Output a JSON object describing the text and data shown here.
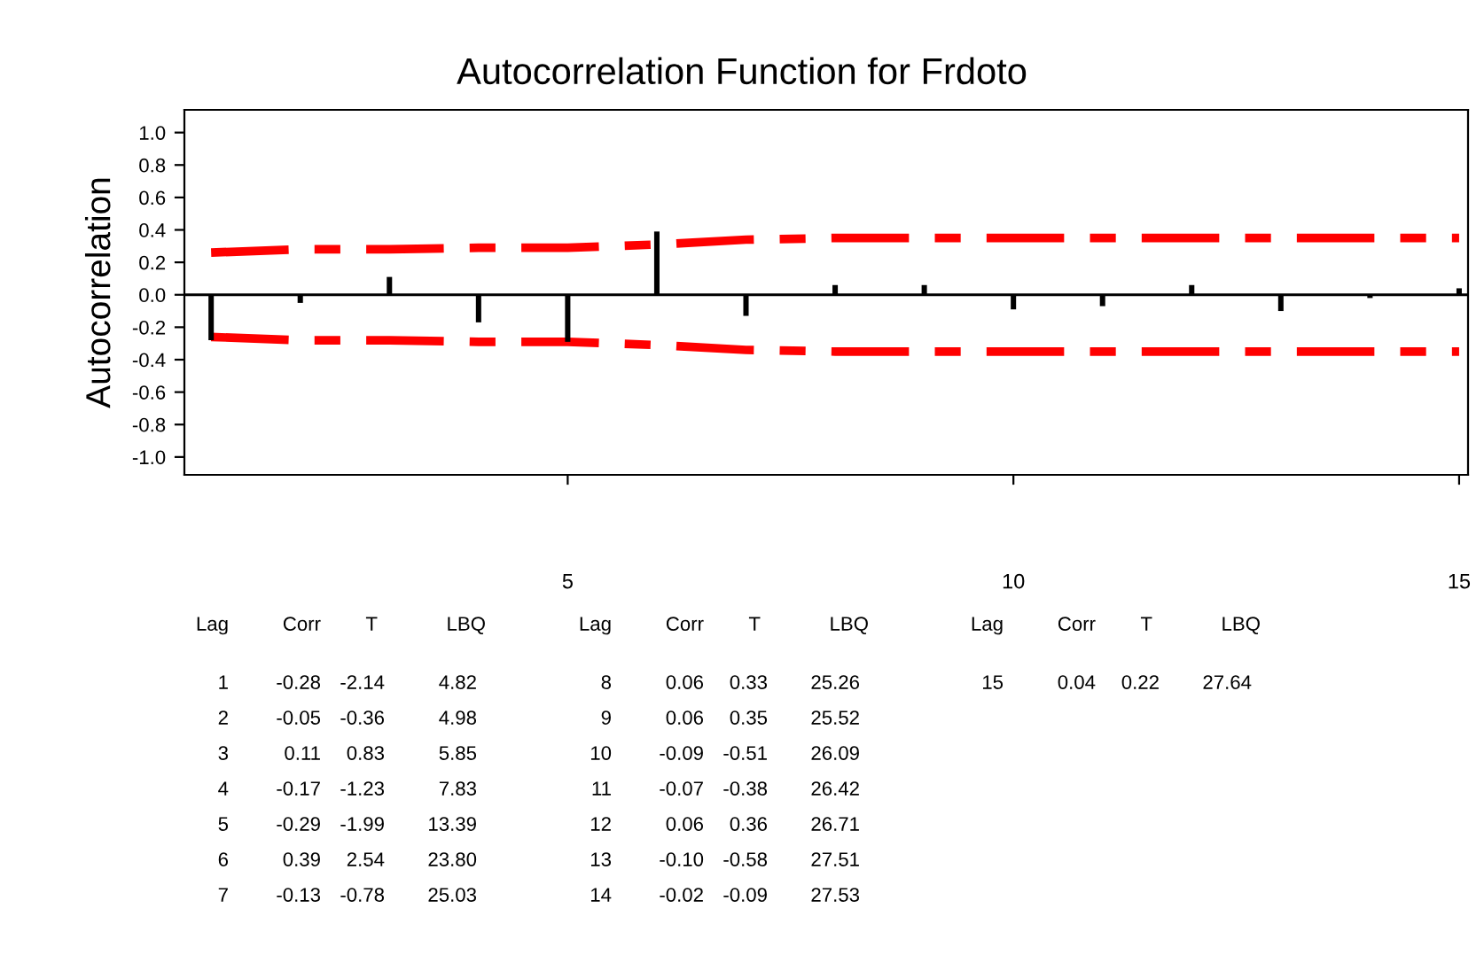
{
  "chart_data": {
    "type": "bar",
    "title": "Autocorrelation Function for Frdoto",
    "ylabel": "Autocorrelation",
    "x": [
      1,
      2,
      3,
      4,
      5,
      6,
      7,
      8,
      9,
      10,
      11,
      12,
      13,
      14,
      15
    ],
    "series": [
      {
        "color": "#000000",
        "values": [
          -0.28,
          -0.05,
          0.11,
          -0.17,
          -0.29,
          0.39,
          -0.13,
          0.06,
          0.06,
          -0.09,
          -0.07,
          0.06,
          -0.1,
          -0.02,
          0.04
        ]
      },
      {
        "type": "line",
        "color": "#ff0000",
        "line_style": "dashed",
        "values": [
          0.26,
          0.28,
          0.28,
          0.29,
          0.29,
          0.31,
          0.34,
          0.35,
          0.35,
          0.35,
          0.35,
          0.35,
          0.35,
          0.35,
          0.35
        ]
      },
      {
        "type": "line",
        "color": "#ff0000",
        "line_style": "dashed",
        "values": [
          -0.26,
          -0.28,
          -0.28,
          -0.29,
          -0.29,
          -0.31,
          -0.34,
          -0.35,
          -0.35,
          -0.35,
          -0.35,
          -0.35,
          -0.35,
          -0.35,
          -0.35
        ]
      }
    ],
    "xlim": [
      0.7,
      15.1
    ],
    "xticks": [
      5,
      10,
      15
    ],
    "ylim": [
      -1.11,
      1.14
    ],
    "yticks": [
      {
        "value": -1,
        "label": "-1.0"
      },
      -0.8,
      -0.6,
      -0.4,
      -0.2,
      {
        "value": 0,
        "label": "0.0"
      },
      0.2,
      0.4,
      0.6,
      0.8,
      {
        "value": 1,
        "label": "1.0"
      }
    ],
    "ref_lines": [
      {
        "axis": "y",
        "value": 0,
        "color": "#000000"
      }
    ],
    "annotations": [
      "Lag Corr T LBQ",
      "Lag Corr T LBQ",
      "Lag Corr T LBQ",
      "1 -0.28 -2.14 4.82",
      "2 -0.05 -0.36 4.98",
      "3 0.11 0.83 5.85",
      "4 -0.17 -1.23 7.83",
      "5 -0.29 -1.99 13.39",
      "6 0.39 2.54 23.80",
      "7 -0.13 -0.78 25.03",
      "8 0.06 0.33 25.26",
      "9 0.06 0.35 25.52",
      "10 -0.09 -0.51 26.09",
      "11 -0.07 -0.38 26.42",
      "12 0.06 0.36 26.71",
      "13 -0.10 -0.58 27.51",
      "14 -0.02 -0.09 27.53",
      "15 0.04 0.22 27.64"
    ]
  }
}
